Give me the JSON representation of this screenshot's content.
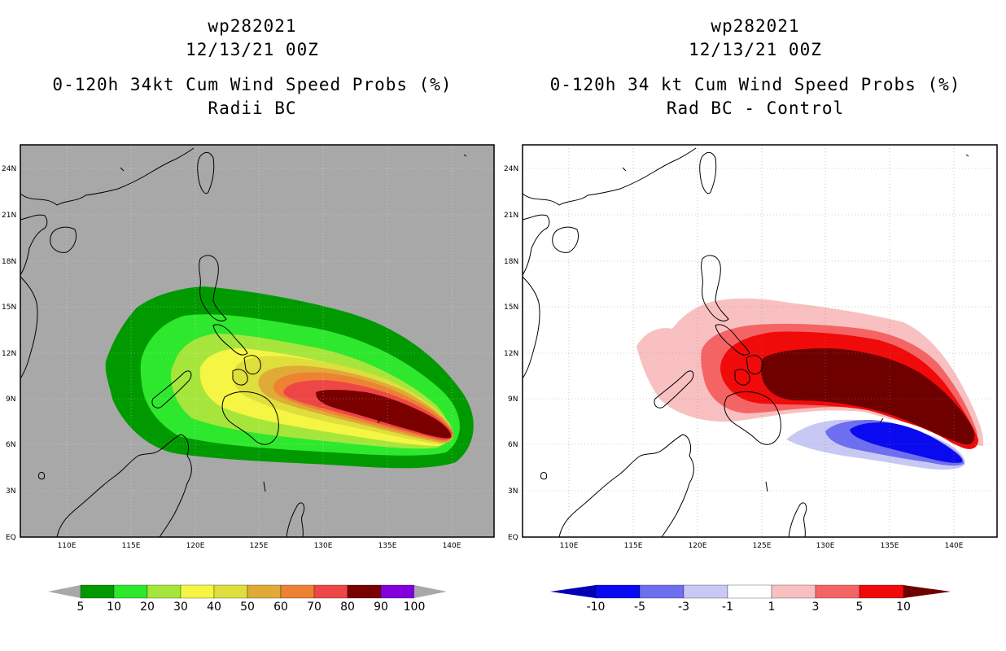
{
  "left_panel": {
    "storm_id": "wp282021",
    "datetime": "12/13/21 00Z",
    "product": "0-120h 34kt Cum Wind Speed Probs (%)",
    "subtitle": "Radii BC"
  },
  "right_panel": {
    "storm_id": "wp282021",
    "datetime": "12/13/21 00Z",
    "product": "0-120h 34 kt Cum Wind Speed Probs (%)",
    "subtitle": "Rad BC - Control"
  },
  "map": {
    "lat_labels": [
      "EQ",
      "3N",
      "6N",
      "9N",
      "12N",
      "15N",
      "18N",
      "21N",
      "24N"
    ],
    "lon_labels": [
      "110E",
      "115E",
      "120E",
      "125E",
      "130E",
      "135E",
      "140E"
    ]
  },
  "left_colorbar": {
    "labels": [
      "5",
      "10",
      "20",
      "30",
      "40",
      "50",
      "60",
      "70",
      "80",
      "90",
      "100"
    ],
    "colors": [
      "#009a00",
      "#2ee82e",
      "#a6e63c",
      "#f5f543",
      "#dede3c",
      "#e0aa37",
      "#ee8233",
      "#ee4646",
      "#7a0000",
      "#8200dc"
    ],
    "extend_color": "#a8a8a8"
  },
  "right_colorbar": {
    "labels": [
      "-10",
      "-5",
      "-3",
      "-1",
      "1",
      "3",
      "5",
      "10"
    ],
    "colors": [
      "#0000b4",
      "#0a0af0",
      "#6e6ef0",
      "#c8c8f5",
      "#ffffff",
      "#f8c0c0",
      "#f56464",
      "#f00a0a",
      "#6e0000"
    ]
  },
  "colors": {
    "background_map": "#a8a8a8",
    "coast": "#000000"
  }
}
